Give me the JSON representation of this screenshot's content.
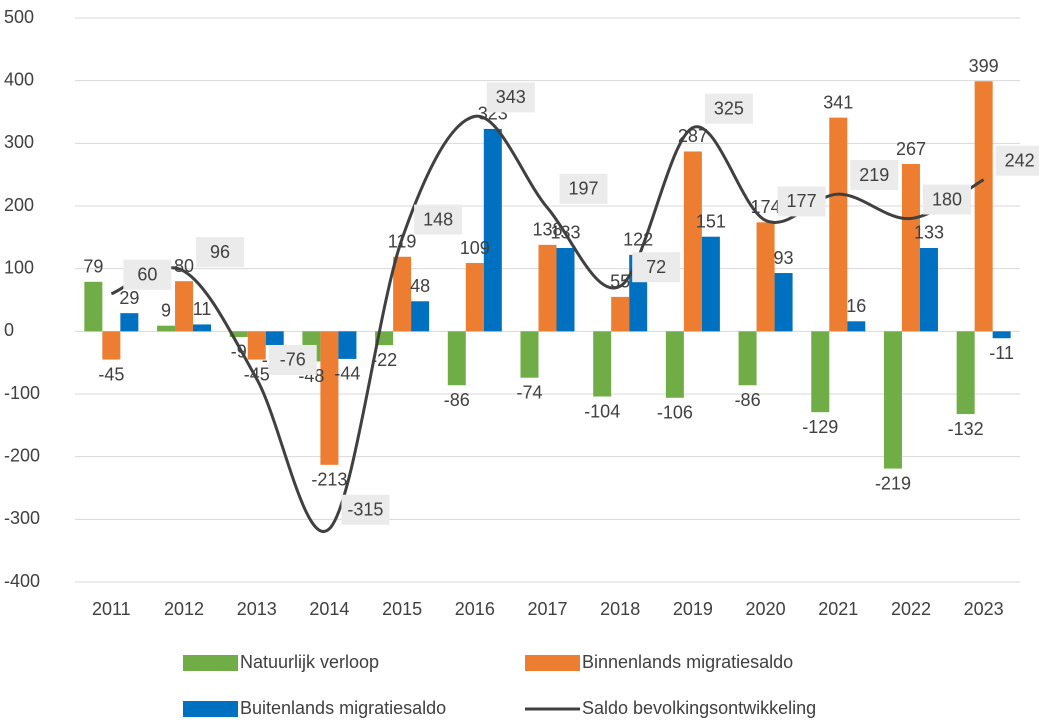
{
  "chart_data": {
    "type": "bar",
    "categories": [
      "2011",
      "2012",
      "2013",
      "2014",
      "2015",
      "2016",
      "2017",
      "2018",
      "2019",
      "2020",
      "2021",
      "2022",
      "2023"
    ],
    "series": [
      {
        "name": "Natuurlijk verloop",
        "color": "#70ad47",
        "type": "bar",
        "values": [
          79,
          9,
          -9,
          -48,
          -22,
          -86,
          -74,
          -104,
          -106,
          -86,
          -129,
          -219,
          -132
        ]
      },
      {
        "name": "Binnenlands migratiesaldo",
        "color": "#ed7d31",
        "type": "bar",
        "values": [
          -45,
          80,
          -45,
          -213,
          119,
          109,
          138,
          55,
          287,
          174,
          341,
          267,
          399
        ]
      },
      {
        "name": "Buitenlands migratiesaldo",
        "color": "#0070c0",
        "type": "bar",
        "values": [
          29,
          11,
          -22,
          -44,
          48,
          323,
          133,
          122,
          151,
          93,
          16,
          133,
          -11
        ]
      },
      {
        "name": "Saldo bevolkingsontwikkeling",
        "color": "#404040",
        "type": "line",
        "values": [
          60,
          96,
          -76,
          -315,
          148,
          343,
          197,
          72,
          325,
          177,
          219,
          180,
          242
        ]
      }
    ],
    "ylim": [
      -400,
      500
    ],
    "yticks": [
      -400,
      -300,
      -200,
      -100,
      0,
      100,
      200,
      300,
      400,
      500
    ],
    "grid": true,
    "legend": "bottom"
  }
}
